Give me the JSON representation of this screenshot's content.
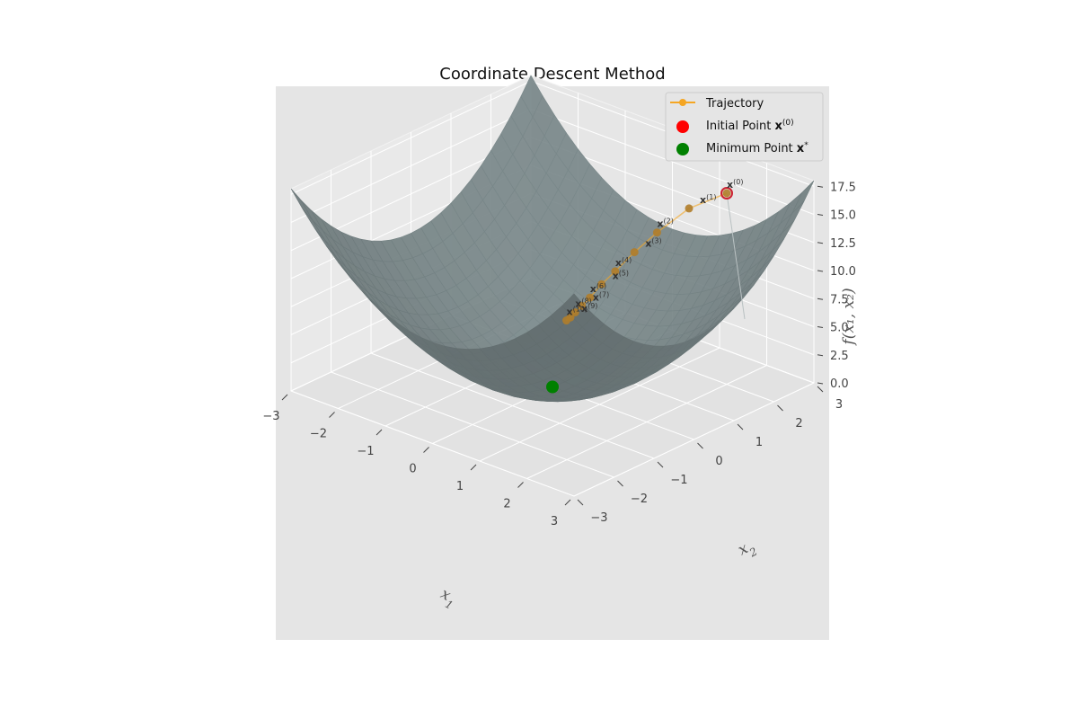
{
  "chart_data": {
    "type": "surface3d",
    "title": "Coordinate Descent Method",
    "x_label_base": "x",
    "x_label_sub": "1",
    "y_label_base": "x",
    "y_label_sub": "2",
    "z_label": "f(x₁, x₂)",
    "xlim": [
      -3,
      3
    ],
    "ylim": [
      -3,
      3
    ],
    "zlim": [
      0,
      18
    ],
    "x_ticks": [
      "−3",
      "−2",
      "−1",
      "0",
      "1",
      "2",
      "3"
    ],
    "x_tick_values": [
      -3,
      -2,
      -1,
      0,
      1,
      2,
      3
    ],
    "y_ticks": [
      "−3",
      "−2",
      "−1",
      "0",
      "1",
      "2",
      "3"
    ],
    "y_tick_values": [
      -3,
      -2,
      -1,
      0,
      1,
      2,
      3
    ],
    "z_ticks": [
      "0.0",
      "2.5",
      "5.0",
      "7.5",
      "10.0",
      "12.5",
      "15.0",
      "17.5"
    ],
    "z_tick_values": [
      0,
      2.5,
      5,
      7.5,
      10,
      12.5,
      15,
      17.5
    ],
    "surface_color": "#7f8f91",
    "trajectory_color": "#f5a623",
    "initial_color": "#ff0000",
    "minimum_color": "#008000",
    "trajectory": [
      {
        "label": "x",
        "sup": "(0)",
        "x": 2.0,
        "y": 2.0,
        "z": 17.0
      },
      {
        "label": "x",
        "sup": "(1)",
        "x": 1.2,
        "y": 2.0,
        "z": 14.4
      },
      {
        "label": "x",
        "sup": "(2)",
        "x": 1.2,
        "y": 1.2,
        "z": 13.6
      },
      {
        "label": "x",
        "sup": "(3)",
        "x": 0.72,
        "y": 1.2,
        "z": 11.1
      },
      {
        "label": "x",
        "sup": "(4)",
        "x": 0.72,
        "y": 0.72,
        "z": 10.2
      },
      {
        "label": "x",
        "sup": "(5)",
        "x": 0.43,
        "y": 0.72,
        "z": 8.6
      },
      {
        "label": "x",
        "sup": "(6)",
        "x": 0.43,
        "y": 0.43,
        "z": 7.9
      },
      {
        "label": "x",
        "sup": "(7)",
        "x": 0.26,
        "y": 0.43,
        "z": 6.9
      },
      {
        "label": "x",
        "sup": "(8)",
        "x": 0.26,
        "y": 0.26,
        "z": 6.6
      },
      {
        "label": "x",
        "sup": "(9)",
        "x": 0.16,
        "y": 0.26,
        "z": 6.0
      },
      {
        "label": "x",
        "sup": "(10)",
        "x": 0.16,
        "y": 0.16,
        "z": 5.9
      }
    ],
    "minimum": {
      "x": 0.0,
      "y": 0.0,
      "z": 0.0
    },
    "legend": [
      {
        "label": "Trajectory",
        "sup": "",
        "marker": "line",
        "color": "#f5a623"
      },
      {
        "label": "Initial Point x",
        "sup": "(0)",
        "marker": "dot",
        "color": "#ff0000"
      },
      {
        "label": "Minimum Point x",
        "sup": "*",
        "marker": "dot",
        "color": "#008000"
      }
    ]
  }
}
